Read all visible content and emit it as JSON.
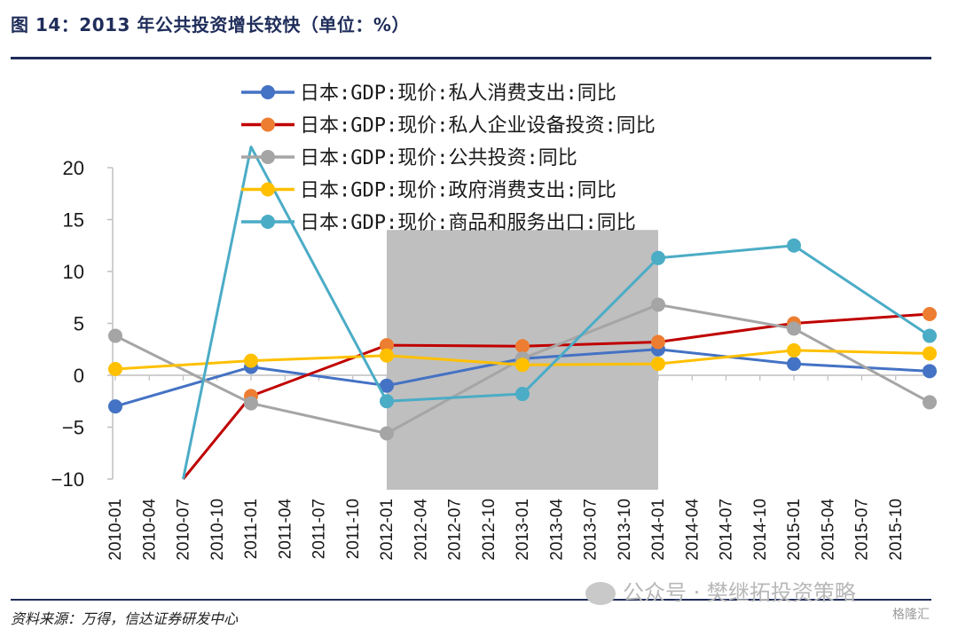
{
  "header": {
    "title": "图 14：2013 年公共投资增长较快（单位：%）"
  },
  "footer": {
    "source": "资料来源：万得，信达证券研发中心",
    "watermark": "公众号 · 樊继拓投资策略",
    "corner_mark": "格隆汇"
  },
  "colors": {
    "title": "#1f2d5a",
    "shade": "#bfbfbf"
  },
  "chart_data": {
    "type": "line",
    "title": "",
    "xlabel": "",
    "ylabel": "",
    "ylim": [
      -10,
      20
    ],
    "yticks": [
      -10,
      -5,
      0,
      5,
      10,
      15,
      20
    ],
    "grid": false,
    "legend": "top-center",
    "categories": [
      "2010-01",
      "2010-04",
      "2010-07",
      "2010-10",
      "2011-01",
      "2011-04",
      "2011-07",
      "2011-10",
      "2012-01",
      "2012-04",
      "2012-07",
      "2012-10",
      "2013-01",
      "2013-04",
      "2013-07",
      "2013-10",
      "2014-01",
      "2014-04",
      "2014-07",
      "2014-10",
      "2015-01",
      "2015-04",
      "2015-07",
      "2015-10"
    ],
    "shaded_range": [
      "2012-01",
      "2014-01"
    ],
    "shaded_top": 14,
    "series": [
      {
        "name": "日本:GDP:现价:私人消费支出:同比",
        "color": "#4472c4",
        "points": [
          [
            "2010-01",
            -3.0
          ],
          [
            "2011-01",
            0.8
          ],
          [
            "2012-01",
            -1.0
          ],
          [
            "2013-01",
            1.6
          ],
          [
            "2014-01",
            2.5
          ],
          [
            "2015-01",
            1.1
          ],
          [
            "2016-01",
            0.4
          ]
        ]
      },
      {
        "name": "日本:GDP:现价:私人企业设备投资:同比",
        "color": "#c00000",
        "marker_color": "#ed7d31",
        "points": [
          [
            "2010-07",
            -10.0
          ],
          [
            "2011-01",
            -2.0
          ],
          [
            "2012-01",
            2.9
          ],
          [
            "2013-01",
            2.8
          ],
          [
            "2014-01",
            3.2
          ],
          [
            "2015-01",
            5.0
          ],
          [
            "2016-01",
            5.9
          ]
        ]
      },
      {
        "name": "日本:GDP:现价:公共投资:同比",
        "color": "#a5a5a5",
        "points": [
          [
            "2010-01",
            3.8
          ],
          [
            "2011-01",
            -2.7
          ],
          [
            "2012-01",
            -5.6
          ],
          [
            "2013-01",
            1.6
          ],
          [
            "2014-01",
            6.8
          ],
          [
            "2015-01",
            4.5
          ],
          [
            "2016-01",
            -2.6
          ]
        ]
      },
      {
        "name": "日本:GDP:现价:政府消费支出:同比",
        "color": "#ffc000",
        "points": [
          [
            "2010-01",
            0.6
          ],
          [
            "2011-01",
            1.4
          ],
          [
            "2012-01",
            1.9
          ],
          [
            "2013-01",
            1.0
          ],
          [
            "2014-01",
            1.1
          ],
          [
            "2015-01",
            2.4
          ],
          [
            "2016-01",
            2.1
          ]
        ]
      },
      {
        "name": "日本:GDP:现价:商品和服务出口:同比",
        "color": "#4bacc6",
        "points": [
          [
            "2010-07",
            -10.0
          ],
          [
            "2011-01",
            22.0
          ],
          [
            "2012-01",
            -2.5
          ],
          [
            "2013-01",
            -1.8
          ],
          [
            "2014-01",
            11.3
          ],
          [
            "2015-01",
            12.5
          ],
          [
            "2016-01",
            3.8
          ]
        ]
      }
    ]
  }
}
